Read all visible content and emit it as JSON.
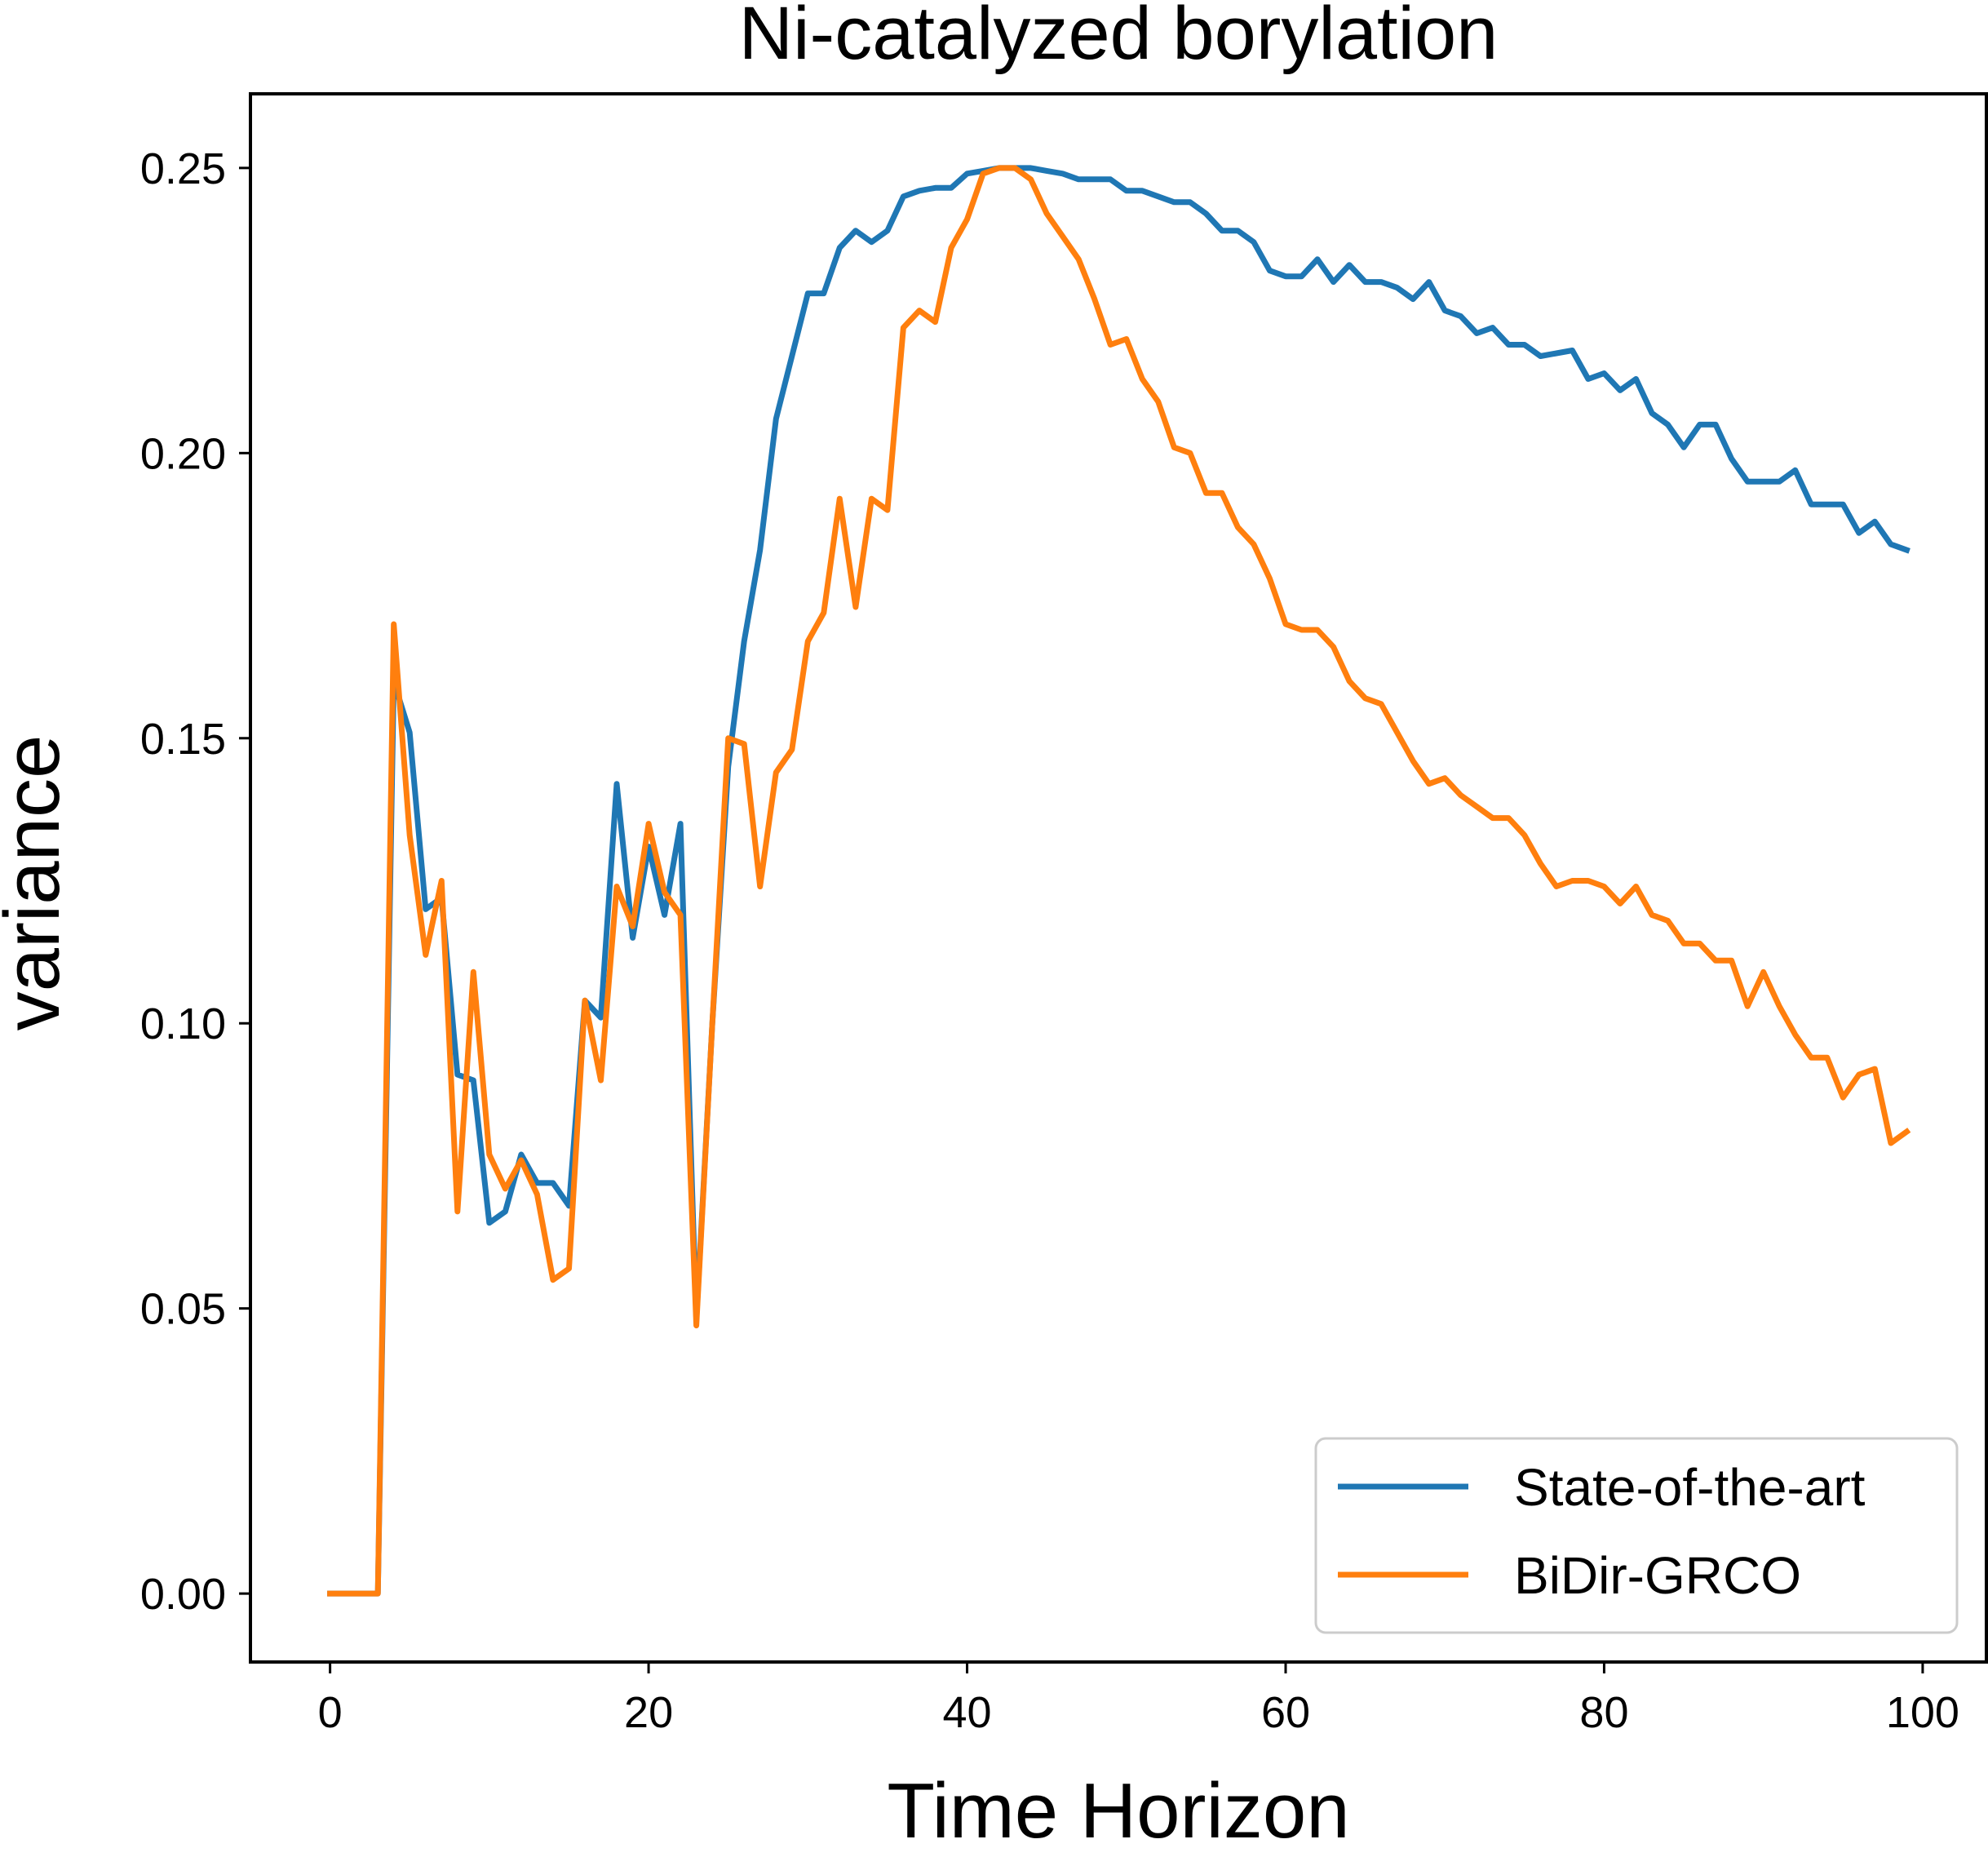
{
  "chart_data": {
    "type": "line",
    "title": "Ni-catalyzed borylation",
    "xlabel": "Time Horizon",
    "ylabel": "variance",
    "xlim": [
      -5,
      104
    ],
    "ylim": [
      -0.012,
      0.263
    ],
    "xticks": [
      0,
      20,
      40,
      60,
      80,
      100
    ],
    "xtick_labels": [
      "0",
      "20",
      "40",
      "60",
      "80",
      "100"
    ],
    "yticks": [
      0.0,
      0.05,
      0.1,
      0.15,
      0.2,
      0.25
    ],
    "ytick_labels": [
      "0.00",
      "0.05",
      "0.10",
      "0.15",
      "0.20",
      "0.25"
    ],
    "grid": false,
    "legend_position": "lower-right",
    "series": [
      {
        "name": "State-of-the-art",
        "color": "#1f77b4",
        "x": [
          0,
          1,
          2,
          3,
          4,
          5,
          6,
          7,
          8,
          9,
          10,
          11,
          12,
          13,
          14,
          15,
          16,
          17,
          18,
          19,
          20,
          21,
          22,
          23,
          24,
          25,
          26,
          27,
          28,
          29,
          30,
          31,
          32,
          33,
          34,
          35,
          36,
          37,
          38,
          39,
          40,
          41,
          42,
          43,
          44,
          45,
          46,
          47,
          48,
          49,
          50,
          51,
          52,
          53,
          54,
          55,
          56,
          57,
          58,
          59,
          60,
          61,
          62,
          63,
          64,
          65,
          66,
          67,
          68,
          69,
          70,
          71,
          72,
          73,
          74,
          75,
          76,
          77,
          78,
          79,
          80,
          81,
          82,
          83,
          84,
          85,
          86,
          87,
          88,
          89,
          90,
          91,
          92,
          93,
          94,
          95,
          96,
          97,
          98,
          99
        ],
        "y": [
          0,
          0,
          0,
          0,
          0.16,
          0.151,
          0.12,
          0.122,
          0.091,
          0.09,
          0.065,
          0.067,
          0.077,
          0.072,
          0.072,
          0.068,
          0.104,
          0.101,
          0.142,
          0.115,
          0.131,
          0.119,
          0.135,
          0.048,
          0.1,
          0.145,
          0.167,
          0.183,
          0.206,
          0.217,
          0.228,
          0.228,
          0.236,
          0.239,
          0.237,
          0.239,
          0.245,
          0.246,
          0.2465,
          0.2465,
          0.249,
          0.2495,
          0.25,
          0.25,
          0.25,
          0.2495,
          0.249,
          0.248,
          0.248,
          0.248,
          0.246,
          0.246,
          0.245,
          0.244,
          0.244,
          0.242,
          0.239,
          0.239,
          0.237,
          0.232,
          0.231,
          0.231,
          0.234,
          0.23,
          0.233,
          0.23,
          0.23,
          0.229,
          0.227,
          0.23,
          0.225,
          0.224,
          0.221,
          0.222,
          0.219,
          0.219,
          0.217,
          0.2175,
          0.218,
          0.213,
          0.214,
          0.211,
          0.213,
          0.207,
          0.205,
          0.201,
          0.205,
          0.205,
          0.199,
          0.195,
          0.195,
          0.195,
          0.197,
          0.191,
          0.191,
          0.191,
          0.186,
          0.188,
          0.184,
          0.183
        ]
      },
      {
        "name": "BiDir-GRCO",
        "color": "#ff7f0e",
        "x": [
          0,
          1,
          2,
          3,
          4,
          5,
          6,
          7,
          8,
          9,
          10,
          11,
          12,
          13,
          14,
          15,
          16,
          17,
          18,
          19,
          20,
          21,
          22,
          23,
          24,
          25,
          26,
          27,
          28,
          29,
          30,
          31,
          32,
          33,
          34,
          35,
          36,
          37,
          38,
          39,
          40,
          41,
          42,
          43,
          44,
          45,
          46,
          47,
          48,
          49,
          50,
          51,
          52,
          53,
          54,
          55,
          56,
          57,
          58,
          59,
          60,
          61,
          62,
          63,
          64,
          65,
          66,
          67,
          68,
          69,
          70,
          71,
          72,
          73,
          74,
          75,
          76,
          77,
          78,
          79,
          80,
          81,
          82,
          83,
          84,
          85,
          86,
          87,
          88,
          89,
          90,
          91,
          92,
          93,
          94,
          95,
          96,
          97,
          98,
          99
        ],
        "y": [
          0,
          0,
          0,
          0,
          0.17,
          0.133,
          0.112,
          0.125,
          0.067,
          0.109,
          0.077,
          0.071,
          0.076,
          0.07,
          0.055,
          0.057,
          0.104,
          0.09,
          0.124,
          0.117,
          0.135,
          0.123,
          0.119,
          0.047,
          0.1,
          0.15,
          0.149,
          0.124,
          0.144,
          0.148,
          0.167,
          0.172,
          0.192,
          0.173,
          0.192,
          0.19,
          0.222,
          0.225,
          0.223,
          0.236,
          0.241,
          0.249,
          0.25,
          0.25,
          0.248,
          0.242,
          0.238,
          0.234,
          0.227,
          0.219,
          0.22,
          0.213,
          0.209,
          0.201,
          0.2,
          0.193,
          0.193,
          0.187,
          0.184,
          0.178,
          0.17,
          0.169,
          0.169,
          0.166,
          0.16,
          0.157,
          0.156,
          0.151,
          0.146,
          0.142,
          0.143,
          0.14,
          0.138,
          0.136,
          0.136,
          0.133,
          0.128,
          0.124,
          0.125,
          0.125,
          0.124,
          0.121,
          0.124,
          0.119,
          0.118,
          0.114,
          0.114,
          0.111,
          0.111,
          0.103,
          0.109,
          0.103,
          0.098,
          0.094,
          0.094,
          0.087,
          0.091,
          0.092,
          0.079,
          0.081
        ]
      }
    ]
  }
}
